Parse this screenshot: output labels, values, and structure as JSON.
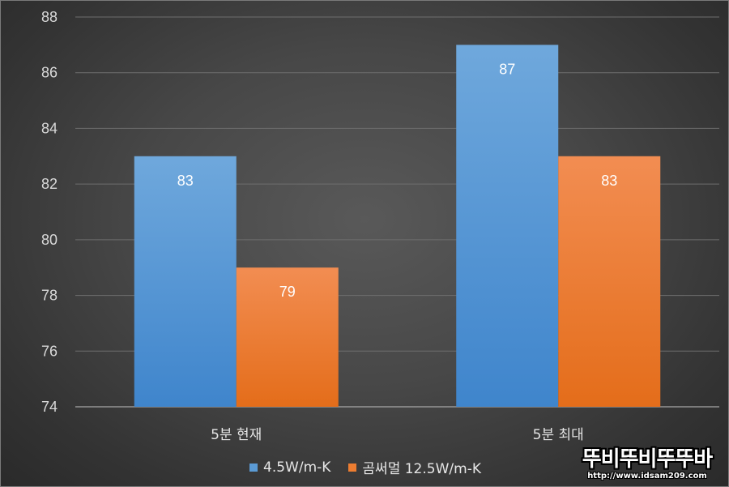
{
  "chart_data": {
    "type": "bar",
    "title": "",
    "xlabel": "",
    "ylabel": "",
    "categories": [
      "5분 현재",
      "5분 최대"
    ],
    "series": [
      {
        "name": "4.5W/m-K",
        "values": [
          83,
          87
        ],
        "color": "#5b9bd5"
      },
      {
        "name": "곰써멀 12.5W/m-K",
        "values": [
          79,
          83
        ],
        "color": "#ed7d31"
      }
    ],
    "ylim": [
      74,
      88
    ],
    "yticks": [
      74,
      76,
      78,
      80,
      82,
      84,
      86,
      88
    ],
    "grid": true,
    "data_labels": true,
    "legend": "bottom"
  },
  "watermark": {
    "main": "뚜비뚜비뚜뚜바",
    "url": "http://www.idsam209.com"
  }
}
